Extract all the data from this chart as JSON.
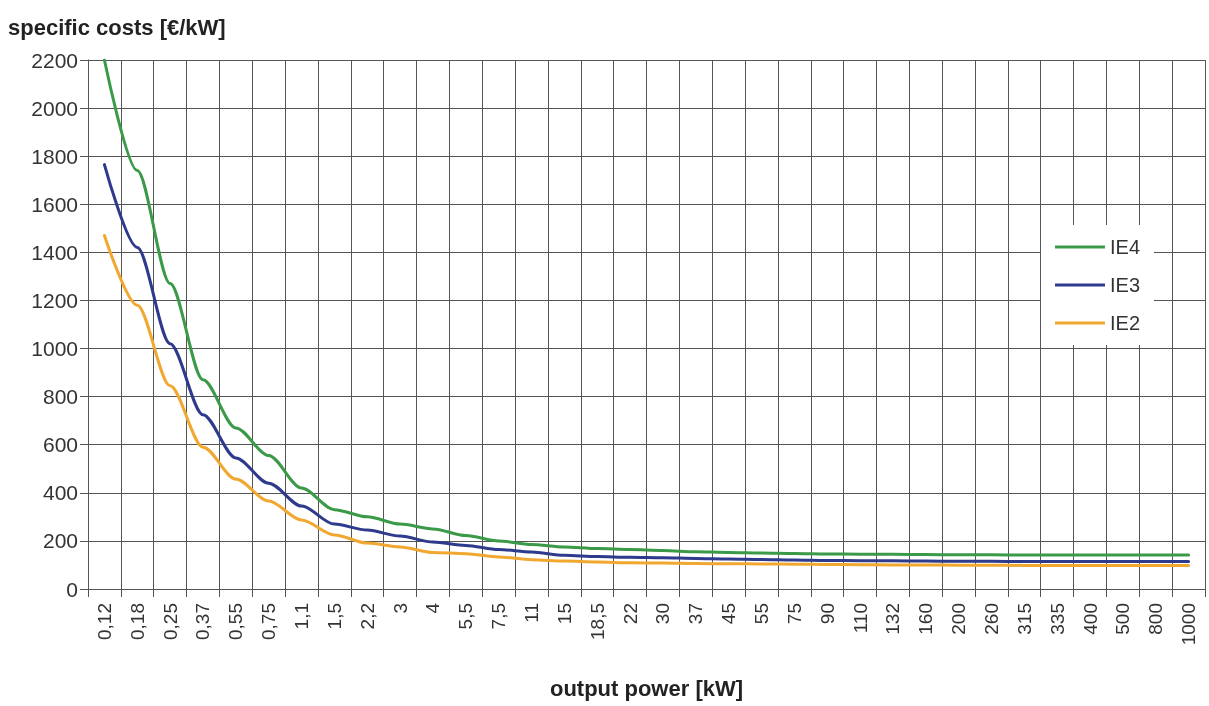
{
  "chart_data": {
    "type": "line",
    "xlabel": "output power [kW]",
    "ylabel": "specific costs [€/kW]",
    "categories": [
      "0,12",
      "0,18",
      "0,25",
      "0,37",
      "0,55",
      "0,75",
      "1,1",
      "1,5",
      "2,2",
      "3",
      "4",
      "5,5",
      "7,5",
      "11",
      "15",
      "18,5",
      "22",
      "30",
      "37",
      "45",
      "55",
      "75",
      "90",
      "110",
      "132",
      "160",
      "200",
      "260",
      "315",
      "335",
      "400",
      "500",
      "800",
      "1000"
    ],
    "series": [
      {
        "name": "IE4",
        "color": "#3a9a48",
        "values": [
          2200,
          1740,
          1270,
          870,
          670,
          555,
          420,
          330,
          300,
          270,
          250,
          222,
          200,
          185,
          175,
          168,
          164,
          160,
          155,
          152,
          150,
          148,
          146,
          145,
          144,
          143,
          142,
          142,
          141,
          141,
          141,
          141,
          141,
          141
        ]
      },
      {
        "name": "IE3",
        "color": "#2e3a8c",
        "values": [
          1765,
          1420,
          1020,
          725,
          545,
          440,
          345,
          270,
          245,
          220,
          195,
          181,
          164,
          154,
          140,
          135,
          132,
          130,
          127,
          125,
          123,
          121,
          119,
          118,
          117,
          116,
          115,
          115,
          114,
          114,
          114,
          114,
          114,
          114
        ]
      },
      {
        "name": "IE2",
        "color": "#f0a830",
        "values": [
          1470,
          1180,
          845,
          590,
          457,
          366,
          287,
          225,
          191,
          175,
          152,
          147,
          133,
          122,
          116,
          112,
          109,
          108,
          106,
          105,
          104,
          103,
          102,
          101,
          100,
          100,
          99,
          99,
          98,
          98,
          98,
          98,
          98,
          98
        ]
      }
    ],
    "ylim": [
      0,
      2200
    ],
    "yticks": [
      0,
      200,
      400,
      600,
      800,
      1000,
      1200,
      1400,
      1600,
      1800,
      2000,
      2200
    ],
    "grid": true,
    "legend": "right",
    "marker": "none",
    "line_style": "solid"
  }
}
